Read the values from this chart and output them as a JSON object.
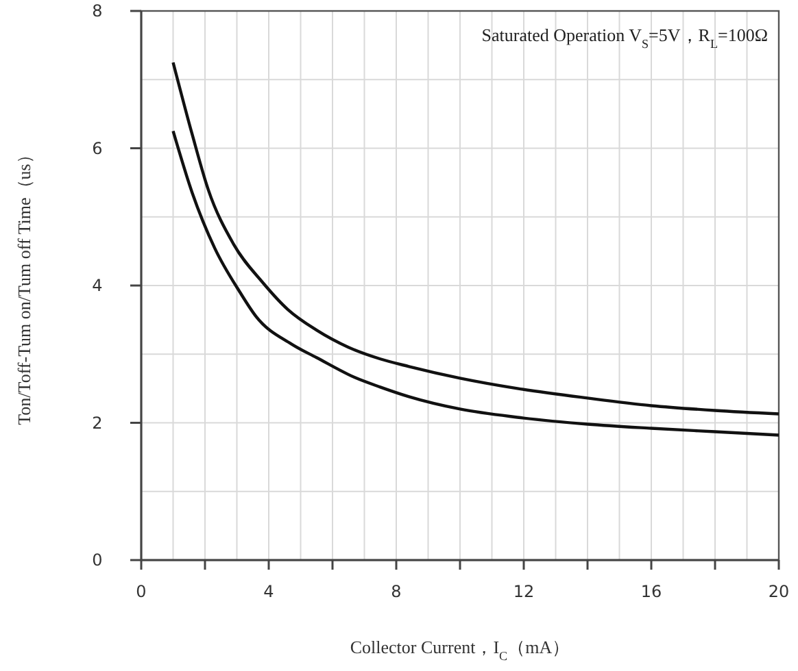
{
  "chart_data": {
    "type": "line",
    "xlabel": "Collector Current，I$_{C}$（mA）",
    "ylabel": "Ton/Toff-Tum on/Tum off Time（us）",
    "annotations": [
      "Saturated Operation V$_{S}$=5V，R$_{L}$=100Ω"
    ],
    "xlim": [
      0,
      20
    ],
    "ylim": [
      0,
      8
    ],
    "xticks": [
      0,
      {
        "value": 1,
        "label": null
      },
      {
        "value": 2,
        "label": null
      },
      {
        "value": 3,
        "label": null
      },
      4,
      {
        "value": 5,
        "label": null
      },
      {
        "value": 6,
        "label": null
      },
      {
        "value": 7,
        "label": null
      },
      8,
      {
        "value": 9,
        "label": null
      },
      {
        "value": 10,
        "label": null
      },
      {
        "value": 11,
        "label": null
      },
      12,
      {
        "value": 13,
        "label": null
      },
      {
        "value": 14,
        "label": null
      },
      {
        "value": 15,
        "label": null
      },
      16,
      {
        "value": 17,
        "label": null
      },
      {
        "value": 18,
        "label": null
      },
      {
        "value": 19,
        "label": null
      },
      20
    ],
    "yticks": [
      0,
      {
        "value": 1,
        "label": null
      },
      2,
      {
        "value": 3,
        "label": null
      },
      4,
      {
        "value": 5,
        "label": null
      },
      6,
      {
        "value": 7,
        "label": null
      },
      8
    ],
    "grid": true,
    "marker": "none",
    "line_style": "solid",
    "series": [
      {
        "color": "#111111",
        "x": [
          1,
          1.6,
          2.1,
          2.9,
          3.8,
          4.6,
          5.5,
          6.5,
          7.5,
          8.4,
          10,
          11.8,
          14,
          16,
          18,
          20
        ],
        "values": [
          7.25,
          6.2,
          5.4,
          4.6,
          4.05,
          3.65,
          3.35,
          3.1,
          2.93,
          2.82,
          2.65,
          2.5,
          2.36,
          2.25,
          2.18,
          2.13
        ]
      },
      {
        "color": "#111111",
        "x": [
          1,
          1.6,
          2.3,
          3.1,
          3.6,
          4.7,
          5.5,
          6.7,
          7.5,
          8.4,
          10,
          11.8,
          14,
          16,
          18,
          20
        ],
        "values": [
          6.25,
          5.35,
          4.55,
          3.9,
          3.55,
          3.15,
          2.95,
          2.66,
          2.52,
          2.38,
          2.2,
          2.08,
          1.98,
          1.92,
          1.87,
          1.82
        ]
      }
    ]
  }
}
